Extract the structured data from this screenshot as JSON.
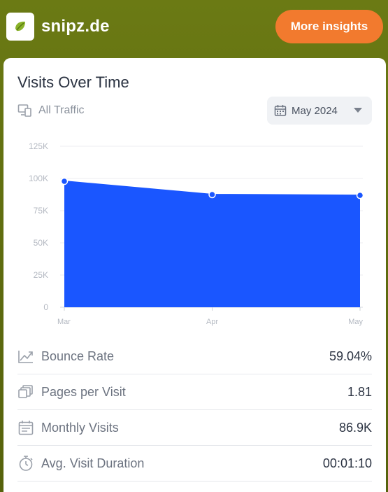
{
  "header": {
    "site_name": "snipz.de",
    "insights_button": "More insights"
  },
  "card": {
    "title": "Visits Over Time",
    "traffic_filter": "All Traffic",
    "date_selector": "May 2024"
  },
  "colors": {
    "header_bg": "#617012",
    "accent_orange": "#f27a2e",
    "chart_fill": "#1a56ff",
    "logo_green": "#8ab32a"
  },
  "chart_data": {
    "type": "area",
    "categories": [
      "Mar",
      "Apr",
      "May"
    ],
    "values": [
      97800,
      87500,
      86900
    ],
    "ylim": [
      0,
      125000
    ],
    "yticks": [
      "0",
      "25K",
      "50K",
      "75K",
      "100K",
      "125K"
    ],
    "ytick_values": [
      0,
      25000,
      50000,
      75000,
      100000,
      125000
    ],
    "grid": true,
    "legend": "none"
  },
  "stats": [
    {
      "icon": "trend-icon",
      "label": "Bounce Rate",
      "value": "59.04%"
    },
    {
      "icon": "pages-icon",
      "label": "Pages per Visit",
      "value": "1.81"
    },
    {
      "icon": "calendar-icon",
      "label": "Monthly Visits",
      "value": "86.9K"
    },
    {
      "icon": "stopwatch-icon",
      "label": "Avg. Visit Duration",
      "value": "00:01:10"
    }
  ]
}
